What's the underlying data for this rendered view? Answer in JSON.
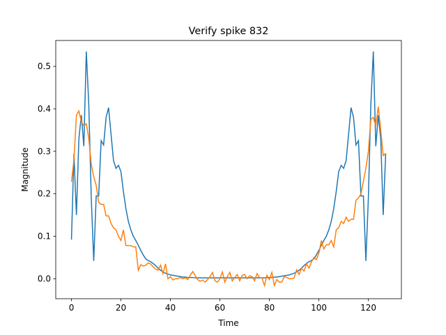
{
  "chart_data": {
    "type": "line",
    "title": "Verify spike 832",
    "xlabel": "Time",
    "ylabel": "Magnitude",
    "x": [
      0,
      1,
      2,
      3,
      4,
      5,
      6,
      7,
      8,
      9,
      10,
      11,
      12,
      13,
      14,
      15,
      16,
      17,
      18,
      19,
      20,
      21,
      22,
      23,
      24,
      25,
      26,
      27,
      28,
      29,
      30,
      31,
      32,
      33,
      34,
      35,
      36,
      37,
      38,
      39,
      40,
      41,
      42,
      43,
      44,
      45,
      46,
      47,
      48,
      49,
      50,
      51,
      52,
      53,
      54,
      55,
      56,
      57,
      58,
      59,
      60,
      61,
      62,
      63,
      64,
      65,
      66,
      67,
      68,
      69,
      70,
      71,
      72,
      73,
      74,
      75,
      76,
      77,
      78,
      79,
      80,
      81,
      82,
      83,
      84,
      85,
      86,
      87,
      88,
      89,
      90,
      91,
      92,
      93,
      94,
      95,
      96,
      97,
      98,
      99,
      100,
      101,
      102,
      103,
      104,
      105,
      106,
      107,
      108,
      109,
      110,
      111,
      112,
      113,
      114,
      115,
      116,
      117,
      118,
      119,
      120,
      121,
      122,
      123,
      124,
      125,
      126,
      127
    ],
    "series": [
      {
        "color": "#1f77b4",
        "values": [
          0.092,
          0.295,
          0.15,
          0.33,
          0.385,
          0.312,
          0.535,
          0.41,
          0.19,
          0.042,
          0.195,
          0.195,
          0.325,
          0.315,
          0.38,
          0.403,
          0.34,
          0.278,
          0.26,
          0.267,
          0.252,
          0.205,
          0.165,
          0.135,
          0.115,
          0.1,
          0.09,
          0.079,
          0.067,
          0.056,
          0.047,
          0.043,
          0.04,
          0.036,
          0.031,
          0.025,
          0.02,
          0.016,
          0.013,
          0.011,
          0.009,
          0.008,
          0.007,
          0.006,
          0.005,
          0.004,
          0.004,
          0.003,
          0.003,
          0.003,
          0.002,
          0.002,
          0.002,
          0.002,
          0.002,
          0.002,
          0.002,
          0.002,
          0.002,
          0.002,
          0.002,
          0.002,
          0.002,
          0.002,
          0.002,
          0.002,
          0.002,
          0.002,
          0.002,
          0.002,
          0.002,
          0.002,
          0.002,
          0.002,
          0.002,
          0.002,
          0.002,
          0.002,
          0.002,
          0.003,
          0.003,
          0.003,
          0.004,
          0.004,
          0.005,
          0.006,
          0.007,
          0.008,
          0.009,
          0.011,
          0.013,
          0.016,
          0.02,
          0.025,
          0.031,
          0.036,
          0.04,
          0.043,
          0.047,
          0.056,
          0.067,
          0.079,
          0.09,
          0.1,
          0.115,
          0.135,
          0.165,
          0.205,
          0.252,
          0.267,
          0.26,
          0.278,
          0.34,
          0.403,
          0.38,
          0.315,
          0.325,
          0.195,
          0.195,
          0.042,
          0.19,
          0.41,
          0.535,
          0.312,
          0.385,
          0.33,
          0.15,
          0.295
        ]
      },
      {
        "color": "#ff7f0e",
        "values": [
          0.228,
          0.28,
          0.385,
          0.395,
          0.37,
          0.36,
          0.365,
          0.33,
          0.27,
          0.24,
          0.22,
          0.18,
          0.175,
          0.175,
          0.148,
          0.148,
          0.13,
          0.12,
          0.115,
          0.1,
          0.09,
          0.115,
          0.078,
          0.078,
          0.078,
          0.075,
          0.075,
          0.02,
          0.033,
          0.03,
          0.032,
          0.037,
          0.035,
          0.028,
          0.023,
          0.02,
          0.032,
          0.012,
          0.035,
          0.0,
          0.005,
          -0.003,
          0.0,
          0.0,
          0.003,
          0.0,
          0.002,
          -0.002,
          0.008,
          0.017,
          0.008,
          -0.002,
          -0.006,
          -0.003,
          -0.008,
          -0.002,
          0.005,
          0.015,
          -0.005,
          -0.008,
          0.0,
          0.016,
          -0.008,
          0.005,
          0.015,
          -0.005,
          0.003,
          0.01,
          -0.005,
          0.008,
          0.01,
          0.0,
          0.007,
          0.005,
          -0.005,
          0.012,
          0.003,
          0.002,
          -0.016,
          0.008,
          -0.002,
          0.015,
          -0.016,
          -0.002,
          -0.008,
          -0.008,
          0.005,
          0.003,
          0.0,
          0.0,
          0.002,
          0.021,
          0.01,
          0.025,
          0.018,
          0.035,
          0.025,
          0.04,
          0.05,
          0.045,
          0.06,
          0.09,
          0.07,
          0.08,
          0.08,
          0.09,
          0.075,
          0.115,
          0.12,
          0.135,
          0.13,
          0.145,
          0.135,
          0.14,
          0.14,
          0.185,
          0.19,
          0.2,
          0.23,
          0.26,
          0.3,
          0.375,
          0.38,
          0.36,
          0.405,
          0.35,
          0.29,
          0.295
        ]
      }
    ],
    "xlim": [
      -6.35,
      133.35
    ],
    "xticks": [
      0,
      20,
      40,
      60,
      80,
      100,
      120
    ],
    "ylim": [
      -0.047,
      0.561
    ],
    "yticks": [
      {
        "value": 0,
        "label": "0.0"
      },
      0.1,
      0.2,
      0.3,
      0.4,
      0.5
    ]
  }
}
